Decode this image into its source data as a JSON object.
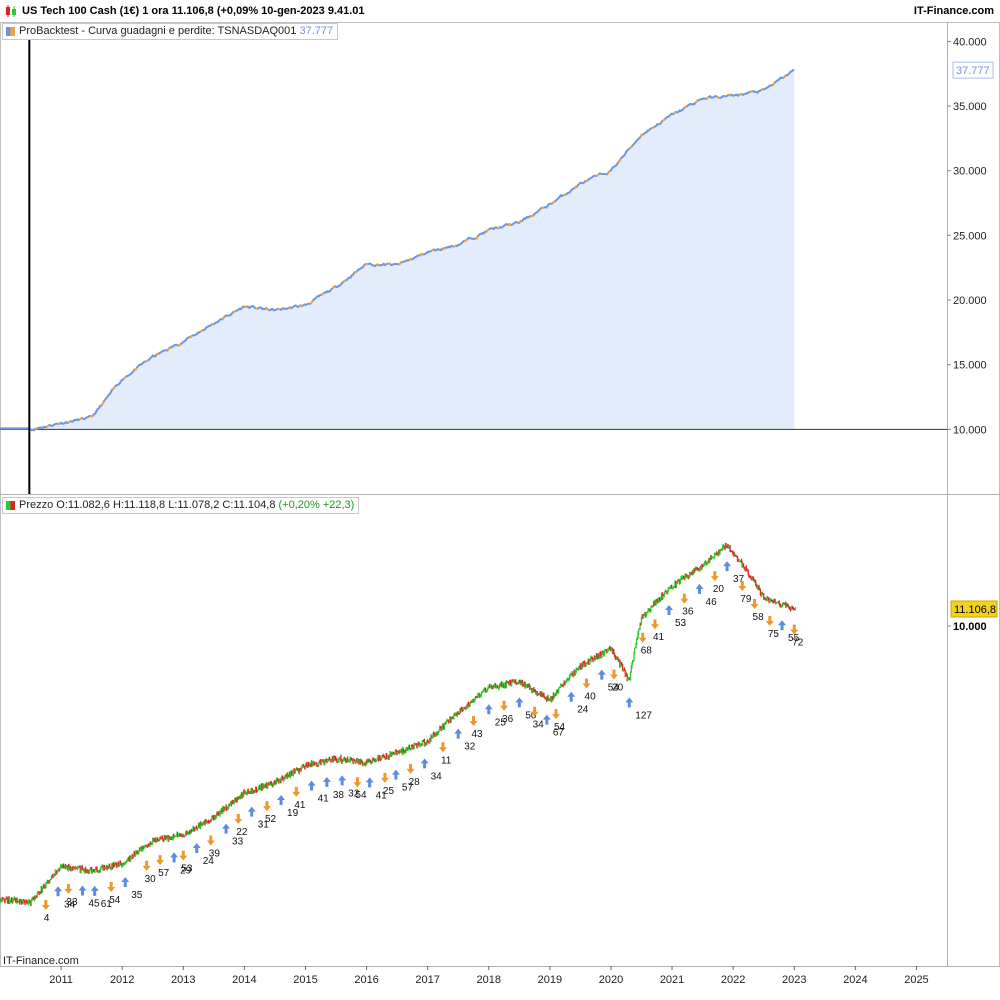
{
  "header": {
    "title": "US Tech 100 Cash (1€) 1 ora 11.106,8 (+0,09% 10-gen-2023 9.41.01",
    "brand": "IT-Finance.com"
  },
  "panel_top": {
    "legend_label": "ProBacktest - Curva guadagni e perdite: TSNASDAQ001",
    "legend_value": "37.777",
    "last_value_label": "37.777"
  },
  "panel_bottom": {
    "legend_label": "Prezzo O:11.082,6 H:11.118,8 L:11.078,2 C:11.104,8",
    "legend_change": "(+0,20% +22,3)",
    "last_price_label": "11.106,8",
    "level_label": "10.000"
  },
  "footer": {
    "brand": "IT-Finance.com"
  },
  "colors": {
    "equity_line": "#6f96dc",
    "equity_line_alt": "#f4a23a",
    "equity_fill": "#e3ecfb",
    "candle_up": "#2fc82f",
    "candle_down": "#dd2222",
    "trade_long": "#5a8edc",
    "trade_short": "#f0962a",
    "price_label_bg": "#f5d21a"
  },
  "chart_data": [
    {
      "type": "area",
      "title": "ProBacktest - Curva guadagni e perdite: TSNASDAQ001",
      "x": [
        "2010.50",
        "2011.00",
        "2011.50",
        "2012.00",
        "2012.50",
        "2013.00",
        "2013.50",
        "2014.00",
        "2014.50",
        "2015.00",
        "2015.50",
        "2016.00",
        "2016.50",
        "2017.00",
        "2017.50",
        "2018.00",
        "2018.50",
        "2019.00",
        "2019.50",
        "2020.00",
        "2020.50",
        "2021.00",
        "2021.50",
        "2022.00",
        "2022.50",
        "2023.00"
      ],
      "values": [
        10000,
        10500,
        10900,
        13900,
        15600,
        16800,
        18200,
        19500,
        19200,
        19600,
        21000,
        22800,
        22700,
        23700,
        24300,
        25400,
        26000,
        27400,
        29000,
        30000,
        32800,
        34300,
        35600,
        35800,
        36200,
        37777
      ],
      "xlim": [
        2010.0,
        2025.5
      ],
      "ylim": [
        5000,
        41500
      ],
      "yticks": [
        "40.000",
        "35.000",
        "30.000",
        "25.000",
        "20.000",
        "15.000",
        "10.000"
      ],
      "reference_line": 10000,
      "start_marker": "2010.48"
    },
    {
      "type": "candlestick",
      "title": "Prezzo",
      "x": [
        "2010.00",
        "2010.50",
        "2011.00",
        "2011.50",
        "2012.00",
        "2012.50",
        "2013.00",
        "2013.50",
        "2014.00",
        "2014.50",
        "2015.00",
        "2015.50",
        "2016.00",
        "2016.50",
        "2017.00",
        "2017.50",
        "2018.00",
        "2018.50",
        "2019.00",
        "2019.50",
        "2020.00",
        "2020.30",
        "2020.50",
        "2021.00",
        "2021.50",
        "2021.90",
        "2022.50",
        "2023.02"
      ],
      "values": [
        1850,
        1800,
        2250,
        2200,
        2300,
        2650,
        2750,
        3050,
        3550,
        3800,
        4200,
        4400,
        4300,
        4550,
        4900,
        5850,
        6800,
        7100,
        6300,
        7800,
        8700,
        7100,
        10500,
        12800,
        14500,
        16500,
        11900,
        11106.8
      ],
      "xlim": [
        2010.0,
        2025.5
      ],
      "log_scale": true,
      "last_price": 11106.8,
      "tick_label_value": 10000,
      "xticks": [
        "2011",
        "2012",
        "2013",
        "2014",
        "2015",
        "2016",
        "2017",
        "2018",
        "2019",
        "2020",
        "2021",
        "2022",
        "2023",
        "2024",
        "2025"
      ],
      "trades": [
        {
          "x": "2010.75",
          "label": "4",
          "side": "short"
        },
        {
          "x": "2010.95",
          "label": "34",
          "side": "long"
        },
        {
          "x": "2011.12",
          "label": "33",
          "side": "short"
        },
        {
          "x": "2011.35",
          "label": "45",
          "side": "long"
        },
        {
          "x": "2011.55",
          "label": "61",
          "side": "long"
        },
        {
          "x": "2011.82",
          "label": "54",
          "side": "short"
        },
        {
          "x": "2012.05",
          "label": "35",
          "side": "long"
        },
        {
          "x": "2012.40",
          "label": "30",
          "side": "short"
        },
        {
          "x": "2012.62",
          "label": "57",
          "side": "short"
        },
        {
          "x": "2012.85",
          "label": "29",
          "side": "long"
        },
        {
          "x": "2013.00",
          "label": "53",
          "side": "short"
        },
        {
          "x": "2013.22",
          "label": "24",
          "side": "long"
        },
        {
          "x": "2013.45",
          "label": "39",
          "side": "short"
        },
        {
          "x": "2013.70",
          "label": "33",
          "side": "long"
        },
        {
          "x": "2013.90",
          "label": "22",
          "side": "short"
        },
        {
          "x": "2014.12",
          "label": "31",
          "side": "long"
        },
        {
          "x": "2014.37",
          "label": "52",
          "side": "short"
        },
        {
          "x": "2014.60",
          "label": "19",
          "side": "long"
        },
        {
          "x": "2014.85",
          "label": "41",
          "side": "short"
        },
        {
          "x": "2015.10",
          "label": "41",
          "side": "long"
        },
        {
          "x": "2015.35",
          "label": "38",
          "side": "long"
        },
        {
          "x": "2015.60",
          "label": "32",
          "side": "long"
        },
        {
          "x": "2015.85",
          "label": "54",
          "side": "short"
        },
        {
          "x": "2016.05",
          "label": "41",
          "side": "long"
        },
        {
          "x": "2016.30",
          "label": "25",
          "side": "short"
        },
        {
          "x": "2016.48",
          "label": "57",
          "side": "long"
        },
        {
          "x": "2016.72",
          "label": "28",
          "side": "short"
        },
        {
          "x": "2016.95",
          "label": "34",
          "side": "long"
        },
        {
          "x": "2017.25",
          "label": "11",
          "side": "short"
        },
        {
          "x": "2017.50",
          "label": "32",
          "side": "long"
        },
        {
          "x": "2017.75",
          "label": "43",
          "side": "short"
        },
        {
          "x": "2018.00",
          "label": "25",
          "side": "long"
        },
        {
          "x": "2018.25",
          "label": "36",
          "side": "short"
        },
        {
          "x": "2018.50",
          "label": "50",
          "side": "long"
        },
        {
          "x": "2018.75",
          "label": "34",
          "side": "short"
        },
        {
          "x": "2018.95",
          "label": "67",
          "side": "long"
        },
        {
          "x": "2019.10",
          "label": "54",
          "side": "short"
        },
        {
          "x": "2019.35",
          "label": "24",
          "side": "long"
        },
        {
          "x": "2019.60",
          "label": "40",
          "side": "short"
        },
        {
          "x": "2019.85",
          "label": "54",
          "side": "long"
        },
        {
          "x": "2020.05",
          "label": "20",
          "side": "short"
        },
        {
          "x": "2020.30",
          "label": "127",
          "side": "long"
        },
        {
          "x": "2020.52",
          "label": "68",
          "side": "short"
        },
        {
          "x": "2020.72",
          "label": "41",
          "side": "short"
        },
        {
          "x": "2020.95",
          "label": "53",
          "side": "long"
        },
        {
          "x": "2021.20",
          "label": "36",
          "side": "short"
        },
        {
          "x": "2021.45",
          "label": "46",
          "side": "long"
        },
        {
          "x": "2021.70",
          "label": "20",
          "side": "short"
        },
        {
          "x": "2021.90",
          "label": "37",
          "side": "long"
        },
        {
          "x": "2022.15",
          "label": "79",
          "side": "short"
        },
        {
          "x": "2022.35",
          "label": "58",
          "side": "short"
        },
        {
          "x": "2022.60",
          "label": "75",
          "side": "short"
        },
        {
          "x": "2022.80",
          "label": "55",
          "side": "long"
        },
        {
          "x": "2023.00",
          "label": "72",
          "side": "short"
        }
      ]
    }
  ]
}
